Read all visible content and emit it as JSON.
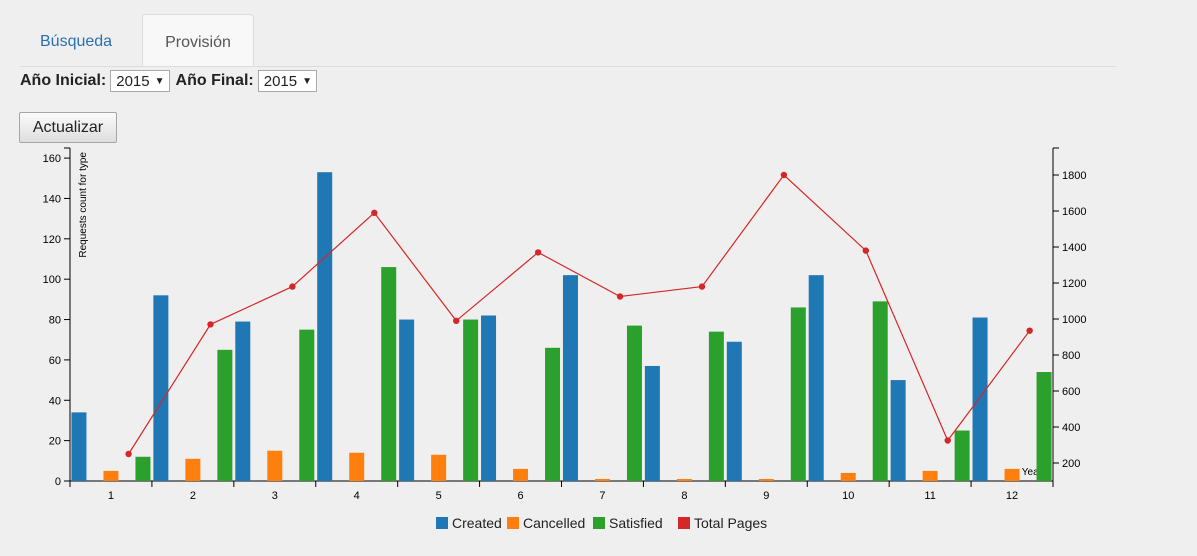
{
  "tabs": {
    "busqueda": "Búsqueda",
    "provision": "Provisión"
  },
  "filters": {
    "start_label": "Año Inicial:",
    "start_value": "2015",
    "end_label": "Año Final:",
    "end_value": "2015"
  },
  "actions": {
    "update_label": "Actualizar"
  },
  "chart_data": {
    "type": "bar",
    "categories": [
      "1",
      "2",
      "3",
      "4",
      "5",
      "6",
      "7",
      "8",
      "9",
      "10",
      "11",
      "12"
    ],
    "series": [
      {
        "name": "Created",
        "type": "bar",
        "axis": "left",
        "color": "#1f77b4",
        "values": [
          34,
          92,
          79,
          153,
          80,
          82,
          102,
          57,
          69,
          102,
          50,
          81
        ]
      },
      {
        "name": "Cancelled",
        "type": "bar",
        "axis": "left",
        "color": "#ff7f0e",
        "values": [
          5,
          11,
          15,
          14,
          13,
          6,
          1,
          1,
          1,
          4,
          5,
          6
        ]
      },
      {
        "name": "Satisfied",
        "type": "bar",
        "axis": "left",
        "color": "#2ca02c",
        "values": [
          12,
          65,
          75,
          106,
          80,
          66,
          77,
          74,
          86,
          89,
          25,
          54
        ]
      },
      {
        "name": "Total Pages",
        "type": "line",
        "axis": "right",
        "color": "#d62728",
        "values": [
          250,
          970,
          1180,
          1590,
          990,
          1370,
          1125,
          1180,
          1800,
          1380,
          325,
          935
        ]
      }
    ],
    "ylabel": "Requests count for type",
    "xlabel": "Years",
    "ylim": [
      0,
      165
    ],
    "y_ticks": [
      0,
      20,
      40,
      60,
      80,
      100,
      120,
      140,
      160
    ],
    "y2lim": [
      100,
      1950
    ],
    "y2_ticks": [
      200,
      400,
      600,
      800,
      1000,
      1200,
      1400,
      1600,
      1800
    ],
    "legend_position": "bottom"
  }
}
